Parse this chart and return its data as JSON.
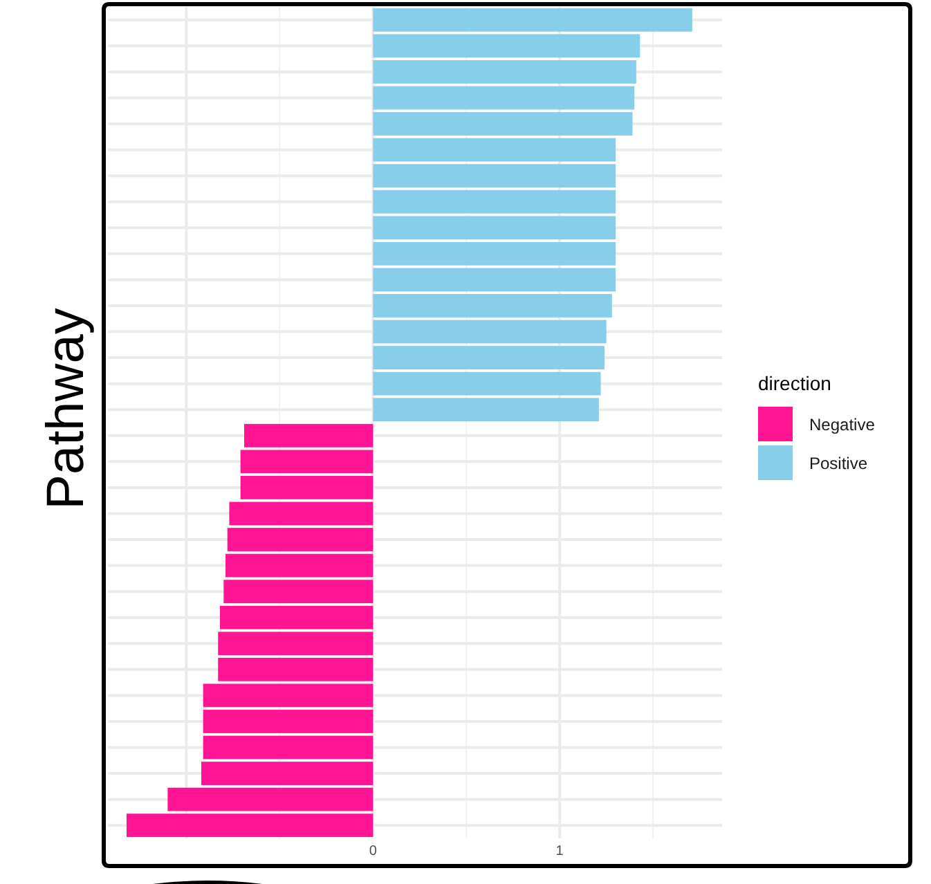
{
  "chart_data": {
    "type": "bar",
    "orientation": "horizontal",
    "ylabel": "Pathway",
    "legend_title": "direction",
    "legend": "right",
    "grid": true,
    "categories": [
      null,
      null,
      null,
      null,
      null,
      null,
      null,
      null,
      null,
      null,
      null,
      null,
      null,
      null,
      null,
      null,
      null,
      null,
      null,
      null,
      null,
      null,
      null,
      null,
      null,
      null,
      null,
      null,
      null,
      null,
      null,
      null
    ],
    "xlim": [
      -1.42,
      1.87
    ],
    "xticks": [
      {
        "value": -1,
        "label": null
      },
      0,
      1
    ],
    "series": [
      {
        "name": "Negative",
        "color": "#ff1493",
        "values": [
          null,
          null,
          null,
          null,
          null,
          null,
          null,
          null,
          null,
          null,
          null,
          null,
          null,
          null,
          null,
          null,
          -0.69,
          -0.71,
          -0.71,
          -0.77,
          -0.78,
          -0.79,
          -0.8,
          -0.82,
          -0.83,
          -0.83,
          -0.91,
          -0.91,
          -0.91,
          -0.92,
          -1.1,
          -1.32
        ]
      },
      {
        "name": "Positive",
        "color": "#87ceeb",
        "values": [
          1.71,
          1.43,
          1.41,
          1.4,
          1.39,
          1.3,
          1.3,
          1.3,
          1.3,
          1.3,
          1.3,
          1.28,
          1.25,
          1.24,
          1.22,
          1.21,
          null,
          null,
          null,
          null,
          null,
          null,
          null,
          null,
          null,
          null,
          null,
          null,
          null,
          null,
          null,
          null
        ]
      }
    ]
  }
}
